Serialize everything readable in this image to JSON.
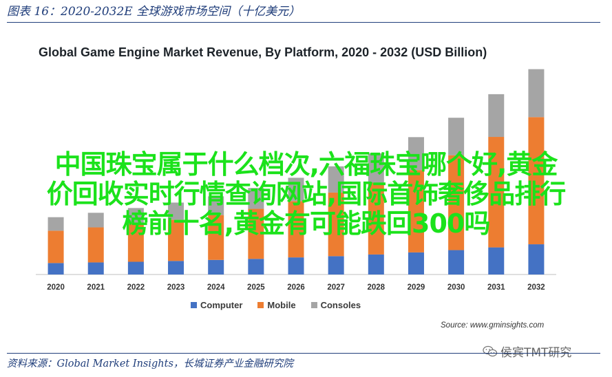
{
  "figure": {
    "caption": "图表 16：2020-2032E 全球游戏市场空间（十亿美元）",
    "source_footer": "资料来源：Global Market Insights，长城证券产业金融研究院"
  },
  "overlay_text": [
    "中国珠宝属于什么档次,六福珠宝哪个好,黄金",
    "价回收实时行情查询网站,国际首饰奢侈品排行",
    "榜前十名,黄金有可能跌回300吗"
  ],
  "watermark": {
    "text": "侯宾TMT研究",
    "icon": "wechat-icon"
  },
  "chart_data": {
    "type": "bar",
    "stacked": true,
    "title": "Global Game Engine Market Revenue, By Platform, 2020 - 2032 (USD Billion)",
    "xlabel": "",
    "ylabel": "",
    "categories": [
      "2020",
      "2021",
      "2022",
      "2023",
      "2024",
      "2025",
      "2026",
      "2027",
      "2028",
      "2029",
      "2030",
      "2031",
      "2032"
    ],
    "series": [
      {
        "name": "Computer",
        "color": "#4472c4",
        "values": [
          0.55,
          0.58,
          0.61,
          0.65,
          0.7,
          0.75,
          0.82,
          0.88,
          0.96,
          1.06,
          1.17,
          1.3,
          1.45
        ]
      },
      {
        "name": "Mobile",
        "color": "#ed7d31",
        "values": [
          1.55,
          1.68,
          1.82,
          1.98,
          2.15,
          2.4,
          2.7,
          3.05,
          3.45,
          3.95,
          4.55,
          5.3,
          6.1
        ]
      },
      {
        "name": "Consoles",
        "color": "#a5a5a5",
        "values": [
          0.65,
          0.7,
          0.76,
          0.82,
          0.9,
          1.0,
          1.12,
          1.26,
          1.4,
          1.58,
          1.8,
          2.05,
          2.3
        ]
      }
    ],
    "ylim": [
      0,
      10
    ],
    "grid": false,
    "legend_position": "bottom",
    "source_note": "Source: www.gminsights.com"
  }
}
